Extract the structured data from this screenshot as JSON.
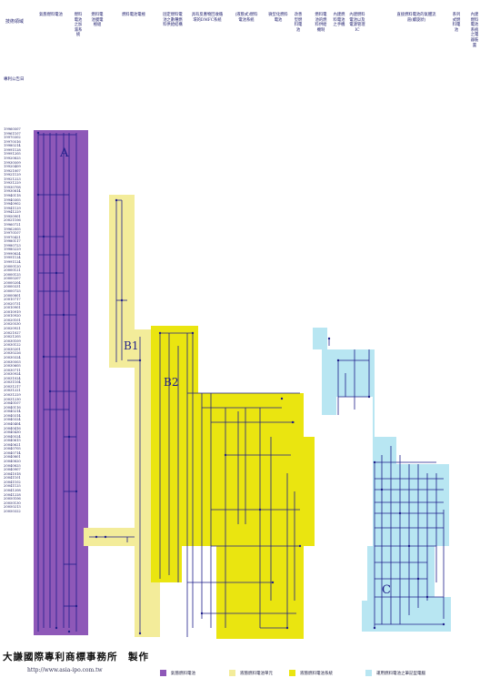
{
  "header": {
    "columns": [
      "技術領域",
      "氣態燃料電池",
      "燃料電池之加濕系統",
      "燃料電池膜電極組",
      "燃料電池電極",
      "固定燃料電池之數種燃料供給結構",
      "具有反應物回收循環的DMFC系統",
      "(液態式)燃料電池系統",
      "微型化燃料電池",
      "改善型燃料電池",
      "燃料電池的燃料供給機制",
      "內建燃料電池之手機",
      "內建燃料電池以及電源管理IC",
      "直接燃料電池的氣體流道(螺旋狀)",
      "系列式燃料電池",
      "內建燃料電池系統之電器裝置"
    ],
    "first_col_sub": "專利公告日"
  },
  "dates": [
    "19960507",
    "19961107",
    "19970302",
    "19970516",
    "19980214",
    "19991128",
    "19991205",
    "19920825",
    "19930509",
    "19920409",
    "19921007",
    "19921129",
    "19921223",
    "19931229",
    "19930708",
    "19930814",
    "19940118",
    "19940305",
    "19940902",
    "19941129",
    "19941229",
    "19950901",
    "20021106",
    "19960721",
    "19962005",
    "19970107",
    "19970421",
    "19980117",
    "19980723",
    "19980229",
    "19990824",
    "19991124",
    "19991124",
    "20000120",
    "20000121",
    "20000125",
    "20000207",
    "20000204",
    "20000331",
    "20000725",
    "20000801",
    "20010717",
    "20020731",
    "20010901",
    "20010919",
    "20010920",
    "20020101",
    "20020530",
    "20020921",
    "20021027",
    "20021205",
    "20030109",
    "20030122",
    "20030201",
    "20030226",
    "20030324",
    "20030503",
    "20030605",
    "20030711",
    "20030924",
    "20031024",
    "20031104",
    "20031217",
    "20031221",
    "20031229",
    "20031230",
    "20040107",
    "20040116",
    "20040214",
    "20040314",
    "20040324",
    "20040404",
    "20040416",
    "20040430",
    "20040524",
    "20040615",
    "20040621",
    "20040705",
    "20040714",
    "20040801",
    "20040820",
    "20040825",
    "20040907",
    "20041018",
    "20041101",
    "20041102",
    "20041125",
    "20041208",
    "20041228",
    "20050106",
    "20050130",
    "20050213",
    "20050322"
  ],
  "regions": {
    "A": "A",
    "B1": "B1",
    "B2": "B2",
    "C": "C",
    "colors": {
      "A": "#8e58b8",
      "B1": "#f3ec9a",
      "B2": "#eae510",
      "C": "#b8e6f2",
      "line": "#1e1e8a"
    }
  },
  "footer": {
    "title": "大謙國際專利商標事務所　製作",
    "url": "http://www.asia-ipo.com.tw"
  },
  "legend": [
    {
      "label": "氣態燃料電池",
      "color": "#8e58b8"
    },
    {
      "label": "液態燃料電池單元",
      "color": "#f3ec9a"
    },
    {
      "label": "液態燃料電池系統",
      "color": "#eae510"
    },
    {
      "label": "運用燃料電池之筆記型電腦",
      "color": "#b8e6f2"
    }
  ]
}
